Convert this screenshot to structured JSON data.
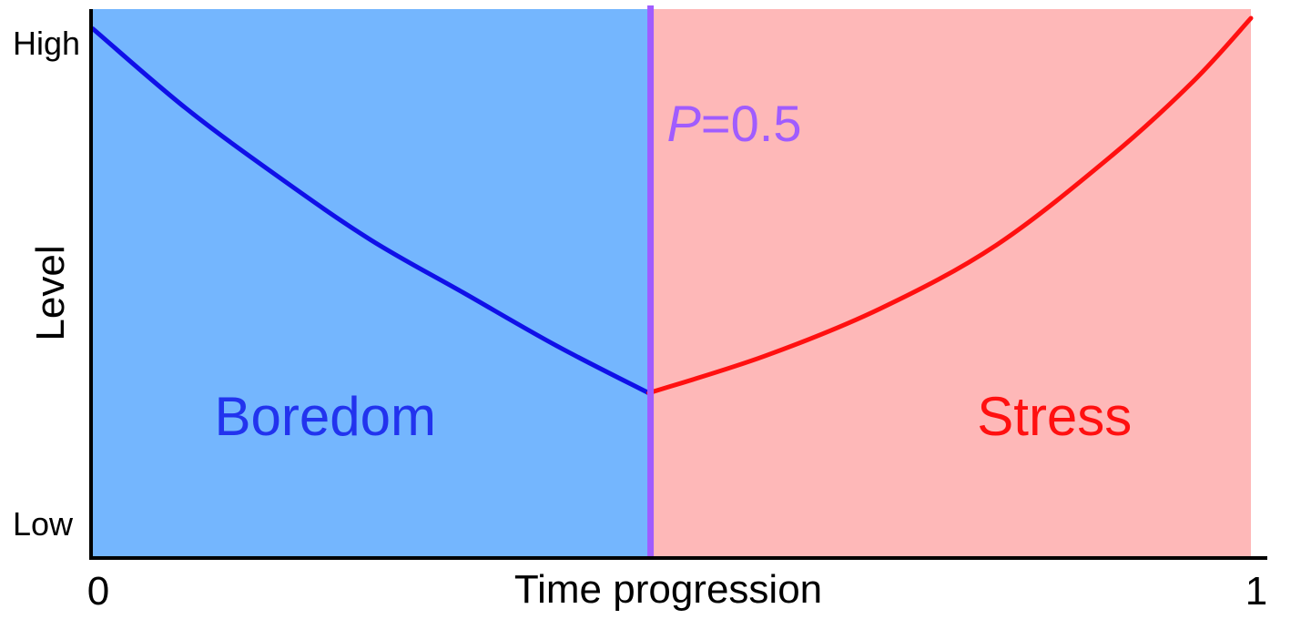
{
  "chart_data": {
    "type": "line",
    "xlabel": "Time progression",
    "ylabel": "Level",
    "x_ticks": [
      {
        "value": 0,
        "label": "0"
      },
      {
        "value": 1,
        "label": "1"
      }
    ],
    "y_ticks": [
      {
        "value": 1,
        "label": "High"
      },
      {
        "value": 0,
        "label": "Low"
      }
    ],
    "xlim": [
      0,
      1
    ],
    "ylim": [
      0,
      1
    ],
    "threshold": {
      "x": 0.48,
      "label_var": "P",
      "label_rest": "=0.5",
      "color": "#a05cff"
    },
    "regions": [
      {
        "name": "Boredom",
        "x_range": [
          0,
          0.48
        ],
        "fill": "#74b6fe",
        "text_color": "#2233ee"
      },
      {
        "name": "Stress",
        "x_range": [
          0.48,
          1
        ],
        "fill": "#feb8b8",
        "text_color": "#ff1010"
      }
    ],
    "series": [
      {
        "color": "#1010e8",
        "points": [
          [
            0,
            0.98
          ],
          [
            0.08,
            0.83
          ],
          [
            0.16,
            0.7
          ],
          [
            0.24,
            0.58
          ],
          [
            0.32,
            0.48
          ],
          [
            0.4,
            0.38
          ],
          [
            0.48,
            0.29
          ]
        ]
      },
      {
        "color": "#ff1010",
        "points": [
          [
            0.48,
            0.29
          ],
          [
            0.58,
            0.36
          ],
          [
            0.68,
            0.45
          ],
          [
            0.78,
            0.57
          ],
          [
            0.88,
            0.74
          ],
          [
            0.95,
            0.88
          ],
          [
            1.0,
            1.0
          ]
        ]
      }
    ]
  }
}
